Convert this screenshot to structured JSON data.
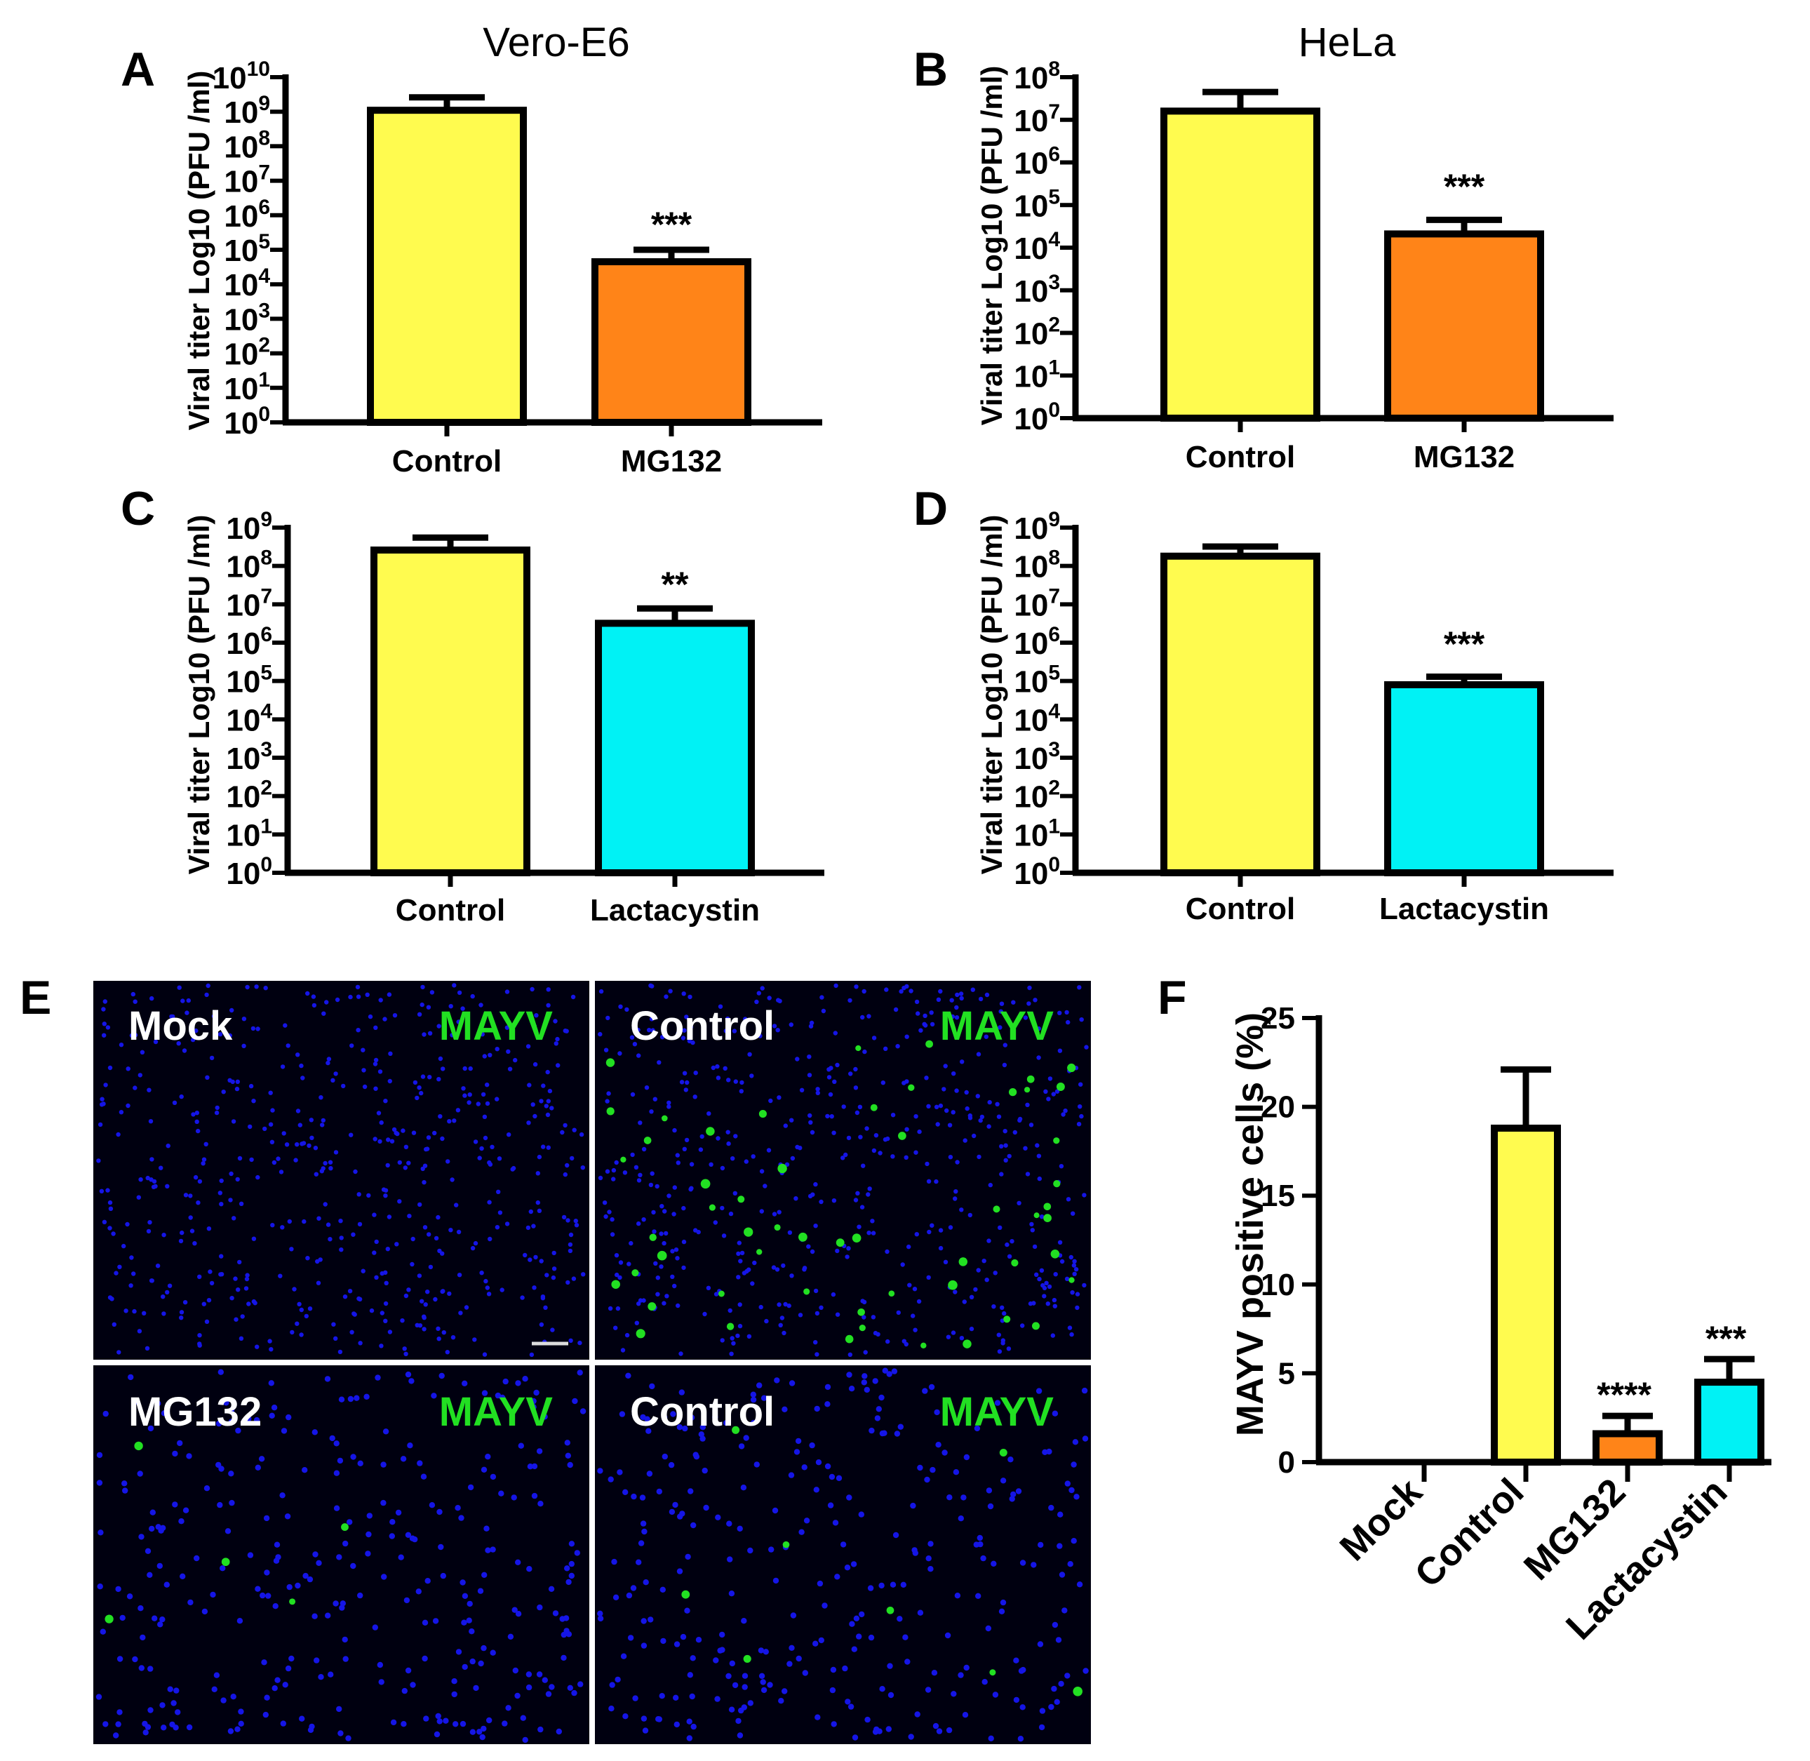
{
  "chart_data": [
    {
      "id": "A",
      "type": "bar",
      "scale": "log10",
      "title": "Vero-E6",
      "ylabel": "Viral titer Log10 (PFU /ml)",
      "categories": [
        "Control",
        "MG132"
      ],
      "values": [
        1100000000.0,
        45000.0
      ],
      "errors_upper": [
        2600000000.0,
        100000.0
      ],
      "significance": [
        "",
        "***"
      ],
      "colors": [
        "#FFFB4F",
        "#FF8418"
      ],
      "ylim_exp": [
        0,
        10
      ]
    },
    {
      "id": "B",
      "type": "bar",
      "scale": "log10",
      "title": "HeLa",
      "ylabel": "Viral titer Log10 (PFU /ml)",
      "categories": [
        "Control",
        "MG132"
      ],
      "values": [
        16000000.0,
        21000.0
      ],
      "errors_upper": [
        45000000.0,
        45000.0
      ],
      "significance": [
        "",
        "***"
      ],
      "colors": [
        "#FFFB4F",
        "#FF8418"
      ],
      "ylim_exp": [
        0,
        8
      ]
    },
    {
      "id": "C",
      "type": "bar",
      "scale": "log10",
      "title": "",
      "ylabel": "Viral titer Log10 (PFU /ml)",
      "categories": [
        "Control",
        "Lactacystin"
      ],
      "values": [
        260000000.0,
        3200000.0
      ],
      "errors_upper": [
        550000000.0,
        7800000.0
      ],
      "significance": [
        "",
        "**"
      ],
      "colors": [
        "#FFFB4F",
        "#00F2F5"
      ],
      "ylim_exp": [
        0,
        9
      ]
    },
    {
      "id": "D",
      "type": "bar",
      "scale": "log10",
      "title": "",
      "ylabel": "Viral titer Log10 (PFU /ml)",
      "categories": [
        "Control",
        "Lactacystin"
      ],
      "values": [
        180000000.0,
        80000.0
      ],
      "errors_upper": [
        320000000.0,
        130000.0
      ],
      "significance": [
        "",
        "***"
      ],
      "colors": [
        "#FFFB4F",
        "#00F2F5"
      ],
      "ylim_exp": [
        0,
        9
      ]
    },
    {
      "id": "F",
      "type": "bar",
      "scale": "linear",
      "title": "",
      "ylabel": "MAYV positive cells (%)",
      "categories": [
        "Mock",
        "Control",
        "MG132",
        "Lactacystin"
      ],
      "values": [
        0,
        18.8,
        1.6,
        4.5
      ],
      "errors_upper": [
        0,
        22.1,
        2.6,
        5.8
      ],
      "significance": [
        "",
        "",
        "****",
        "***"
      ],
      "colors": [
        "#FFFB4F",
        "#FFFB4F",
        "#FF8418",
        "#00F2F5"
      ],
      "ylim": [
        0,
        25
      ],
      "yticks": [
        0,
        5,
        10,
        15,
        20,
        25
      ]
    }
  ],
  "microscopy": {
    "letter": "E",
    "panels": [
      {
        "label": "Mock",
        "stain": "MAYV",
        "infected_cells": 0
      },
      {
        "label": "Control",
        "stain": "MAYV",
        "infected_cells": 55
      },
      {
        "label": "MG132",
        "stain": "MAYV",
        "infected_cells": 5
      },
      {
        "label": "Control",
        "stain": "MAYV",
        "infected_cells": 8
      }
    ],
    "colors": {
      "background": "#000010",
      "nuclei": "#1515e6",
      "mayv": "#22e022"
    }
  },
  "letters": {
    "A": "A",
    "B": "B",
    "C": "C",
    "D": "D",
    "E": "E",
    "F": "F"
  }
}
